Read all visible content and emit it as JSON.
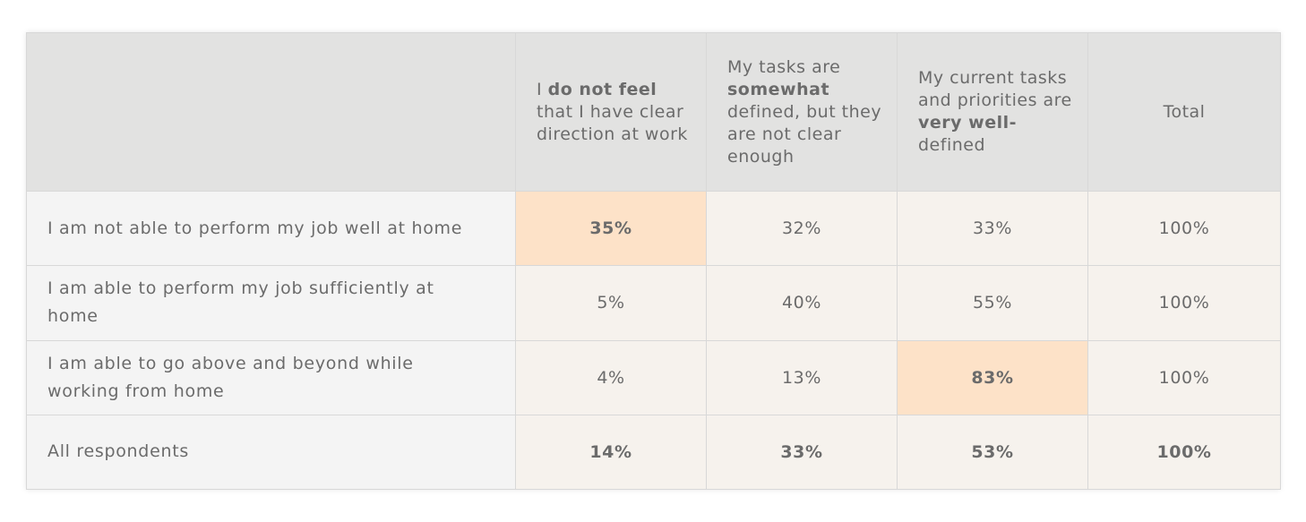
{
  "chart_data": {
    "type": "table",
    "columns": [
      {
        "pre": "",
        "pre_bold": "",
        "plain": "",
        "bold": "",
        "post": ""
      },
      {
        "pre": "I ",
        "bold": "do not feel",
        "post": " that I have clear direction at work"
      },
      {
        "pre": "My tasks are ",
        "bold": "somewhat",
        "post": " defined, but they are not clear enough"
      },
      {
        "pre": "My current tasks and priorities are ",
        "bold": "very well-",
        "post": "defined"
      },
      {
        "pre": "Total",
        "bold": "",
        "post": ""
      }
    ],
    "rows": [
      {
        "label": "I am not able to perform my job well at home",
        "values": [
          "35%",
          "32%",
          "33%",
          "100%"
        ],
        "highlight_index": 0
      },
      {
        "label": "I am able to perform my job sufficiently at home",
        "values": [
          "5%",
          "40%",
          "55%",
          "100%"
        ],
        "highlight_index": -1
      },
      {
        "label": "I am able to go above and beyond while working from home",
        "values": [
          "4%",
          "13%",
          "83%",
          "100%"
        ],
        "highlight_index": 2
      },
      {
        "label": "All respondents",
        "values": [
          "14%",
          "33%",
          "53%",
          "100%"
        ],
        "highlight_index": -1
      }
    ]
  },
  "colors": {
    "header_bg": "#e2e2e1",
    "label_bg": "#f4f4f4",
    "cell_bg": "#f6f2ed",
    "highlight_bg": "#fde2c8",
    "text": "#6b6b6b",
    "border": "#d8d8d8"
  }
}
